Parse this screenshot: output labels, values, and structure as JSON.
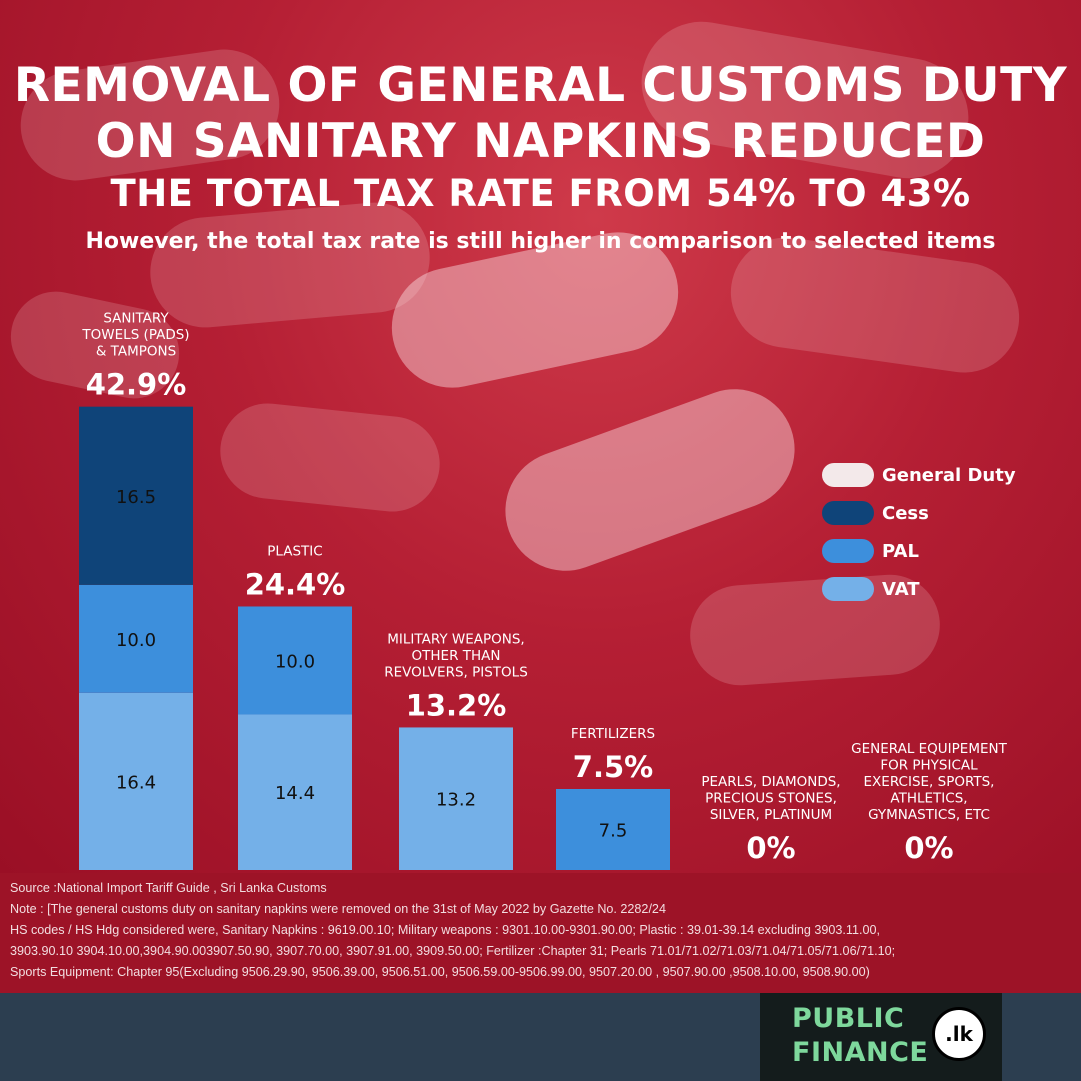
{
  "title_line1": "REMOVAL OF GENERAL CUSTOMS DUTY",
  "title_line2": "ON SANITARY NAPKINS REDUCED",
  "title_line3": "THE TOTAL TAX RATE FROM 54% TO 43%",
  "subtitle": "However, the total tax rate is still higher in comparison to selected items",
  "colors": {
    "general_duty": "#f3e9ea",
    "cess": "#0f4479",
    "pal": "#3d8fdc",
    "vat": "#74b0e8"
  },
  "chart_data": {
    "type": "bar",
    "stacked": true,
    "categories": [
      [
        "SANITARY",
        "TOWELS (PADS)",
        "& TAMPONS"
      ],
      [
        "PLASTIC"
      ],
      [
        "MILITARY WEAPONS,",
        "OTHER THAN",
        "REVOLVERS, PISTOLS"
      ],
      [
        "FERTILIZERS"
      ],
      [
        "PEARLS, DIAMONDS,",
        "PRECIOUS STONES,",
        "SILVER, PLATINUM"
      ],
      [
        "GENERAL EQUIPEMENT",
        "FOR PHYSICAL",
        "EXERCISE, SPORTS,",
        "ATHLETICS,",
        "GYMNASTICS, ETC"
      ]
    ],
    "totals": [
      "42.9%",
      "24.4%",
      "13.2%",
      "7.5%",
      "0%",
      "0%"
    ],
    "series": [
      {
        "name": "VAT",
        "color_key": "vat",
        "values": [
          16.4,
          14.4,
          13.2,
          0,
          0,
          0
        ]
      },
      {
        "name": "PAL",
        "color_key": "pal",
        "values": [
          10.0,
          10.0,
          0,
          7.5,
          0,
          0
        ]
      },
      {
        "name": "Cess",
        "color_key": "cess",
        "values": [
          16.5,
          0,
          0,
          0,
          0,
          0
        ]
      },
      {
        "name": "General Duty",
        "color_key": "general_duty",
        "values": [
          0,
          0,
          0,
          0,
          0,
          0
        ]
      }
    ],
    "segment_labels": [
      [
        "16.4",
        "10.0",
        "16.5",
        ""
      ],
      [
        "14.4",
        "10.0",
        "",
        ""
      ],
      [
        "13.2",
        "",
        "",
        ""
      ],
      [
        "",
        "7.5",
        "",
        ""
      ],
      [
        "",
        "",
        "",
        ""
      ],
      [
        "",
        "",
        "",
        ""
      ]
    ],
    "legend": [
      "General Duty",
      "Cess",
      "PAL",
      "VAT"
    ],
    "legend_position": "right"
  },
  "footer": {
    "source": "Source :National Import Tariff Guide , Sri Lanka Customs",
    "note": "Note : [The general customs duty on sanitary napkins were removed on the 31st of May 2022 by Gazette No. 2282/24",
    "hs_line1": "HS codes / HS Hdg  considered were, Sanitary Napkins : 9619.00.10; Military weapons :  9301.10.00-9301.90.00; Plastic : 39.01-39.14 excluding 3903.11.00,",
    "hs_line2": "3903.90.10 3904.10.00,3904.90.003907.50.90, 3907.70.00, 3907.91.00, 3909.50.00; Fertilizer :Chapter 31; Pearls 71.01/71.02/71.03/71.04/71.05/71.06/71.10;",
    "hs_line3": "Sports Equipment: Chapter 95(Excluding 9506.29.90, 9506.39.00, 9506.51.00, 9506.59.00-9506.99.00, 9507.20.00 , 9507.90.00 ,9508.10.00, 9508.90.00)"
  },
  "logo": {
    "line1": "PUBLIC",
    "line2": "FINANCE",
    "badge": ".lk"
  }
}
